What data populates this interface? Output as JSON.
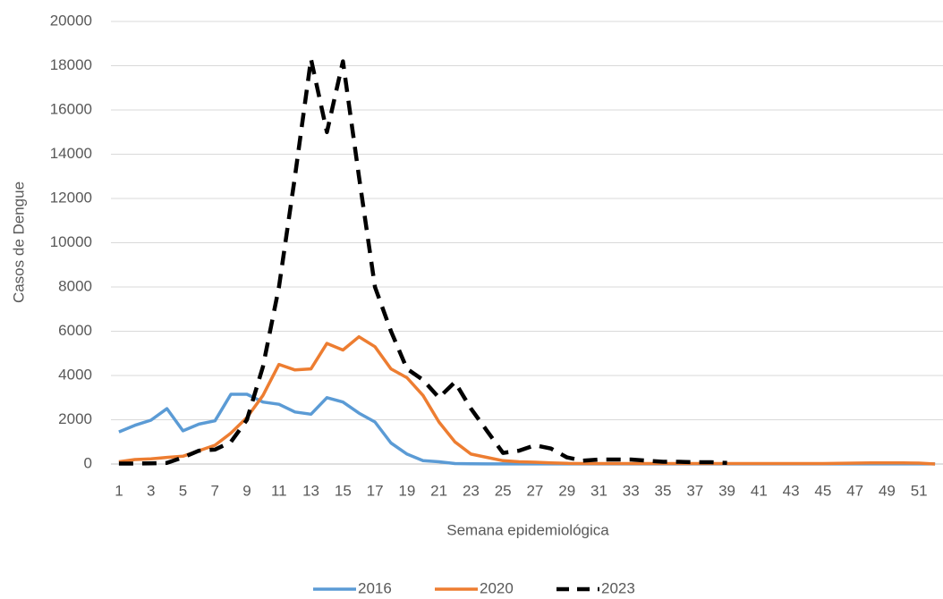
{
  "chart_data": {
    "type": "line",
    "y_label": "Casos de Dengue",
    "x_label": "Semana epidemiológica",
    "categories": [
      "1",
      null,
      "3",
      null,
      "5",
      null,
      "7",
      null,
      "9",
      null,
      "11",
      null,
      "13",
      null,
      "15",
      null,
      "17",
      null,
      "19",
      null,
      "21",
      null,
      "23",
      null,
      "25",
      null,
      "27",
      null,
      "29",
      null,
      "31",
      null,
      "33",
      null,
      "35",
      null,
      "37",
      null,
      "39",
      null,
      "41",
      null,
      "43",
      null,
      "45",
      null,
      "47",
      null,
      "49",
      null,
      "51",
      null
    ],
    "series": [
      {
        "name": "2016",
        "color": "#5b9bd5",
        "dash": false,
        "values": [
          1450,
          1750,
          1980,
          2500,
          1500,
          1800,
          1950,
          3150,
          3150,
          2800,
          2700,
          2350,
          2250,
          3000,
          2800,
          2300,
          1900,
          950,
          450,
          150,
          100,
          20,
          10,
          5,
          5,
          5,
          5,
          5,
          5,
          5,
          5,
          5,
          5,
          5,
          5,
          5,
          5,
          5,
          5,
          5,
          5,
          5,
          5,
          5,
          5,
          5,
          5,
          5,
          5,
          5,
          5,
          5
        ]
      },
      {
        "name": "2020",
        "color": "#ed7d31",
        "dash": false,
        "values": [
          100,
          200,
          230,
          300,
          350,
          600,
          850,
          1400,
          2100,
          3100,
          4500,
          4250,
          4300,
          5450,
          5150,
          5750,
          5300,
          4300,
          3900,
          3100,
          1900,
          1000,
          450,
          300,
          150,
          100,
          80,
          50,
          30,
          20,
          20,
          20,
          20,
          20,
          20,
          20,
          20,
          20,
          20,
          20,
          20,
          20,
          20,
          20,
          20,
          30,
          40,
          50,
          50,
          50,
          40,
          0
        ]
      },
      {
        "name": "2023",
        "color": "#000000",
        "dash": true,
        "values": [
          20,
          20,
          30,
          50,
          300,
          600,
          650,
          1000,
          2000,
          4400,
          8000,
          13000,
          18300,
          15000,
          18200,
          13000,
          8000,
          6000,
          4300,
          3800,
          3000,
          3700,
          2500,
          1500,
          500,
          600,
          850,
          700,
          300,
          150,
          200,
          200,
          200,
          150,
          100,
          100,
          80,
          80,
          50,
          null,
          null,
          null,
          null,
          null,
          null,
          null,
          null,
          null,
          null,
          null,
          null,
          null
        ]
      }
    ],
    "ylim": [
      0,
      20000
    ],
    "yticks": [
      0,
      2000,
      4000,
      6000,
      8000,
      10000,
      12000,
      14000,
      16000,
      18000,
      20000
    ],
    "grid": true,
    "legend": "bottom"
  }
}
